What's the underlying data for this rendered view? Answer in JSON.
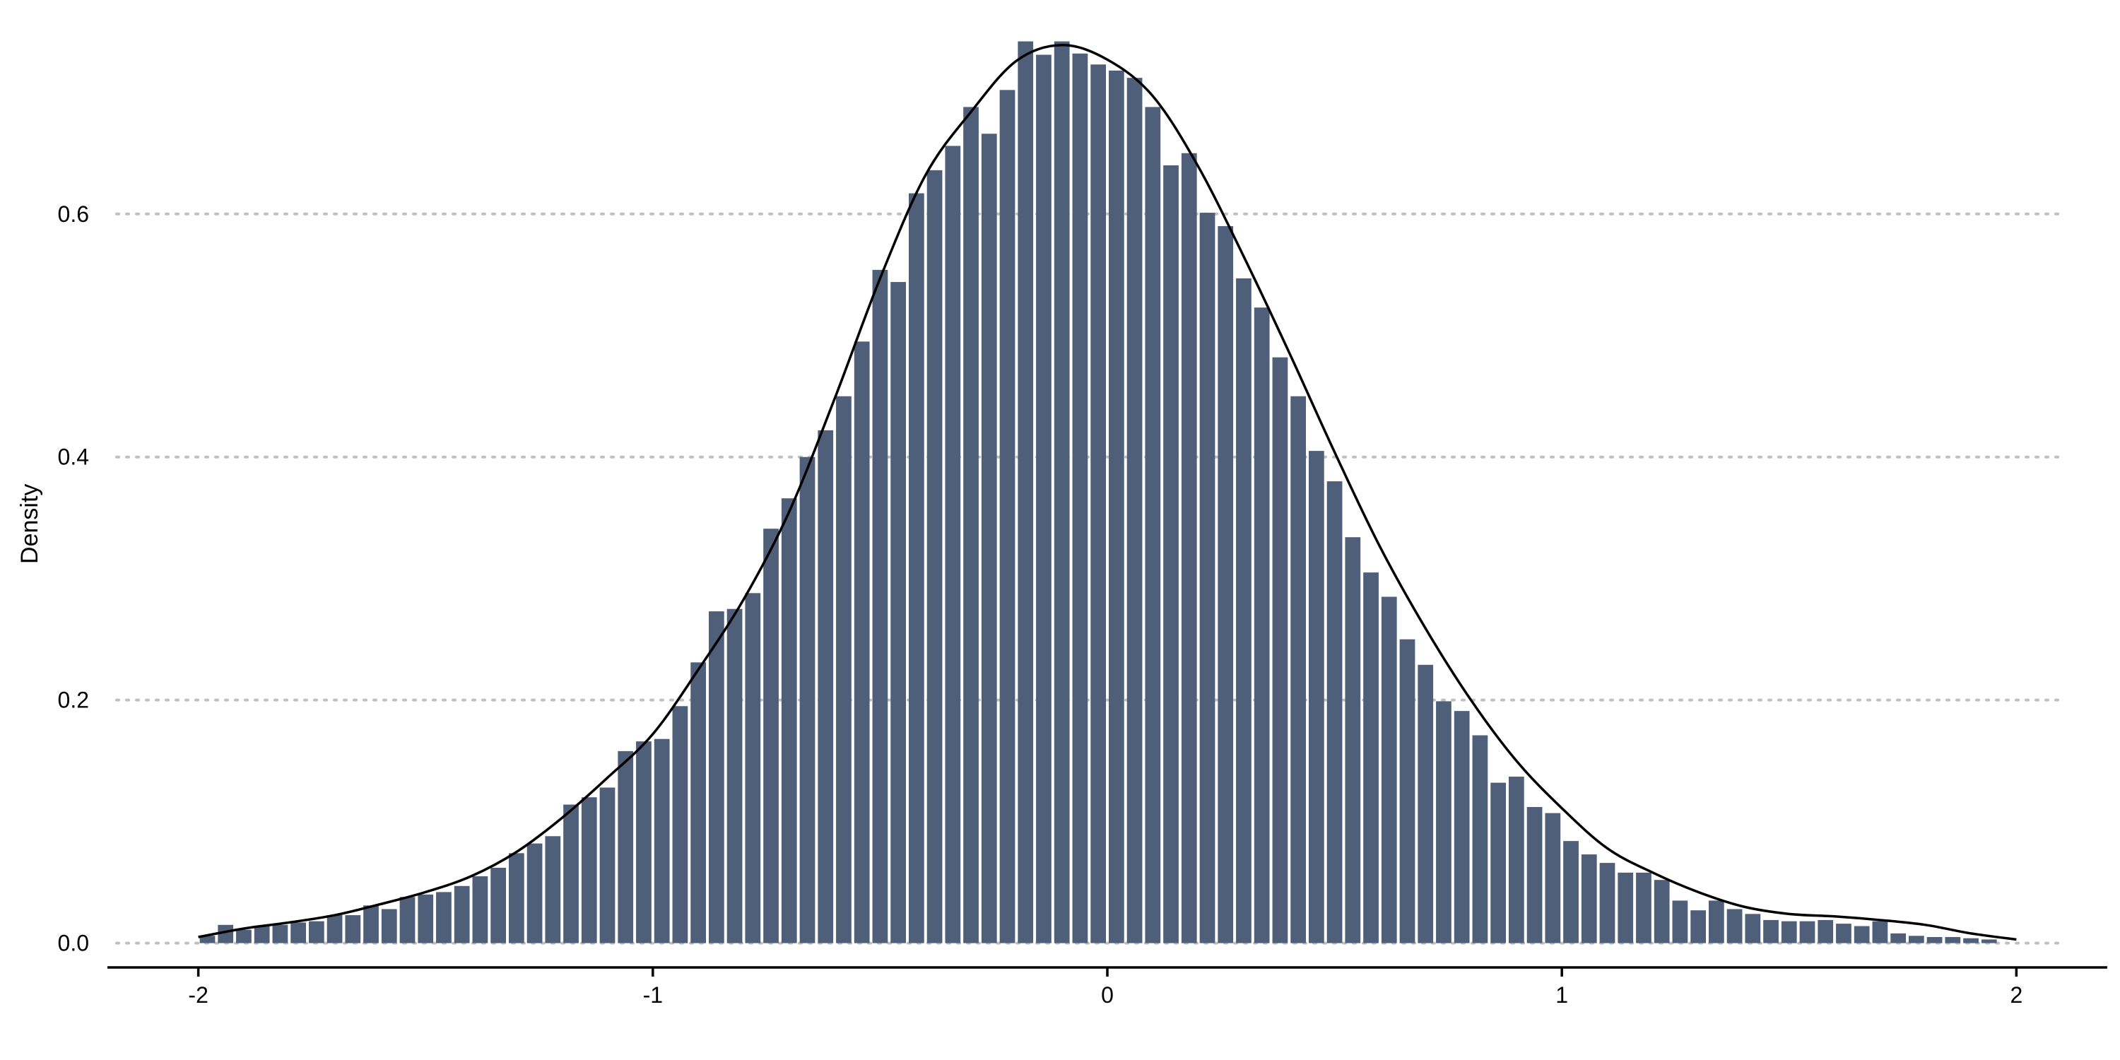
{
  "chart_data": {
    "type": "bar",
    "title": "",
    "xlabel": "",
    "ylabel": "Density",
    "xlim": [
      -2.2,
      2.2
    ],
    "ylim": [
      -0.02,
      0.74
    ],
    "x_ticks": [
      -2,
      -1,
      0,
      1,
      2
    ],
    "y_ticks": [
      0.0,
      0.2,
      0.4,
      0.6
    ],
    "x_tick_labels": [
      "-2",
      "-1",
      "0",
      "1",
      "2"
    ],
    "y_tick_labels": [
      "0.0",
      "0.2",
      "0.4",
      "0.6"
    ],
    "grid": "horizontal dotted",
    "legend": "none",
    "colors": {
      "bar": "#4f5f7a",
      "curve": "#000000",
      "grid": "#c0c0c0",
      "axis": "#000000"
    },
    "bins": {
      "start": -2.0,
      "width": 0.04,
      "values": [
        0.006,
        0.015,
        0.011,
        0.014,
        0.015,
        0.017,
        0.018,
        0.023,
        0.023,
        0.031,
        0.028,
        0.038,
        0.04,
        0.042,
        0.047,
        0.055,
        0.062,
        0.074,
        0.082,
        0.088,
        0.114,
        0.12,
        0.128,
        0.158,
        0.166,
        0.168,
        0.195,
        0.231,
        0.273,
        0.275,
        0.288,
        0.341,
        0.366,
        0.4,
        0.422,
        0.45,
        0.495,
        0.554,
        0.544,
        0.617,
        0.636,
        0.656,
        0.688,
        0.666,
        0.702,
        0.742,
        0.731,
        0.742,
        0.732,
        0.723,
        0.718,
        0.712,
        0.688,
        0.64,
        0.65,
        0.601,
        0.59,
        0.547,
        0.523,
        0.482,
        0.45,
        0.405,
        0.38,
        0.334,
        0.305,
        0.285,
        0.25,
        0.229,
        0.199,
        0.191,
        0.171,
        0.132,
        0.137,
        0.112,
        0.107,
        0.084,
        0.073,
        0.066,
        0.058,
        0.058,
        0.052,
        0.035,
        0.027,
        0.035,
        0.028,
        0.024,
        0.019,
        0.018,
        0.018,
        0.019,
        0.016,
        0.014,
        0.018,
        0.008,
        0.006,
        0.005,
        0.005,
        0.004,
        0.003
      ]
    },
    "density_curve": {
      "x": [
        -2.0,
        -1.9,
        -1.8,
        -1.7,
        -1.6,
        -1.5,
        -1.4,
        -1.3,
        -1.2,
        -1.1,
        -1.0,
        -0.9,
        -0.8,
        -0.7,
        -0.6,
        -0.5,
        -0.4,
        -0.3,
        -0.2,
        -0.1,
        0.0,
        0.1,
        0.2,
        0.3,
        0.4,
        0.5,
        0.6,
        0.7,
        0.8,
        0.9,
        1.0,
        1.1,
        1.2,
        1.3,
        1.4,
        1.5,
        1.6,
        1.7,
        1.8,
        1.9,
        2.0
      ],
      "y": [
        0.005,
        0.012,
        0.017,
        0.023,
        0.032,
        0.042,
        0.055,
        0.075,
        0.103,
        0.136,
        0.172,
        0.225,
        0.283,
        0.355,
        0.448,
        0.547,
        0.632,
        0.684,
        0.726,
        0.739,
        0.727,
        0.697,
        0.639,
        0.565,
        0.486,
        0.404,
        0.326,
        0.259,
        0.2,
        0.15,
        0.111,
        0.078,
        0.058,
        0.042,
        0.03,
        0.024,
        0.022,
        0.019,
        0.015,
        0.008,
        0.003
      ]
    }
  }
}
